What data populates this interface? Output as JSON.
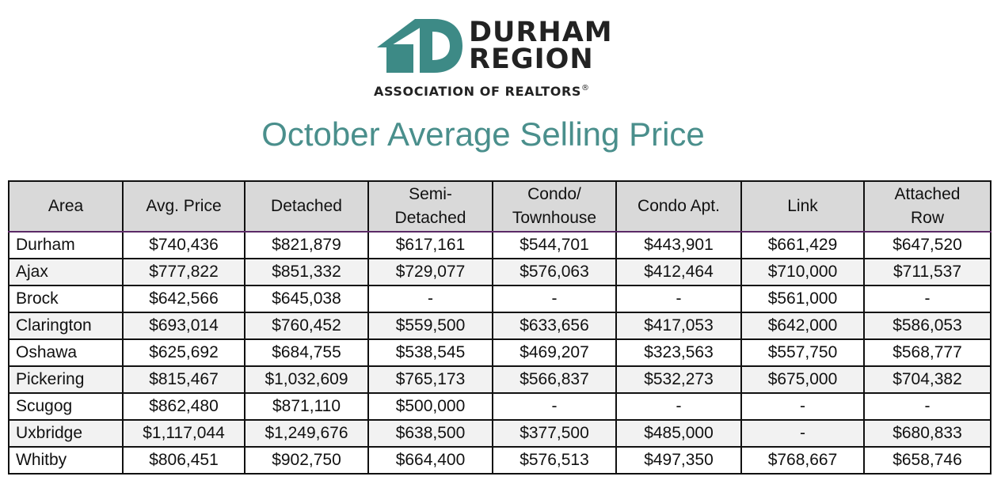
{
  "logo": {
    "line1": "DURHAM",
    "line2": "REGION",
    "tagline": "ASSOCIATION OF REALTORS",
    "registered_mark": "®",
    "color_teal": "#3d8a86"
  },
  "title": "October Average Selling Price",
  "table": {
    "headers": [
      "Area",
      "Avg. Price",
      "Detached",
      "Semi-\nDetached",
      "Condo/\nTownhouse",
      "Condo Apt.",
      "Link",
      "Attached\nRow"
    ],
    "rows": [
      [
        "Durham",
        "$740,436",
        "$821,879",
        "$617,161",
        "$544,701",
        "$443,901",
        "$661,429",
        "$647,520"
      ],
      [
        "Ajax",
        "$777,822",
        "$851,332",
        "$729,077",
        "$576,063",
        "$412,464",
        "$710,000",
        "$711,537"
      ],
      [
        "Brock",
        "$642,566",
        "$645,038",
        "-",
        "-",
        "-",
        "$561,000",
        "-"
      ],
      [
        "Clarington",
        "$693,014",
        "$760,452",
        "$559,500",
        "$633,656",
        "$417,053",
        "$642,000",
        "$586,053"
      ],
      [
        "Oshawa",
        "$625,692",
        "$684,755",
        "$538,545",
        "$469,207",
        "$323,563",
        "$557,750",
        "$568,777"
      ],
      [
        "Pickering",
        "$815,467",
        "$1,032,609",
        "$765,173",
        "$566,837",
        "$532,273",
        "$675,000",
        "$704,382"
      ],
      [
        "Scugog",
        "$862,480",
        "$871,110",
        "$500,000",
        "-",
        "-",
        "-",
        "-"
      ],
      [
        "Uxbridge",
        "$1,117,044",
        "$1,249,676",
        "$638,500",
        "$377,500",
        "$485,000",
        "-",
        "$680,833"
      ],
      [
        "Whitby",
        "$806,451",
        "$902,750",
        "$664,400",
        "$576,513",
        "$497,350",
        "$768,667",
        "$658,746"
      ]
    ]
  }
}
